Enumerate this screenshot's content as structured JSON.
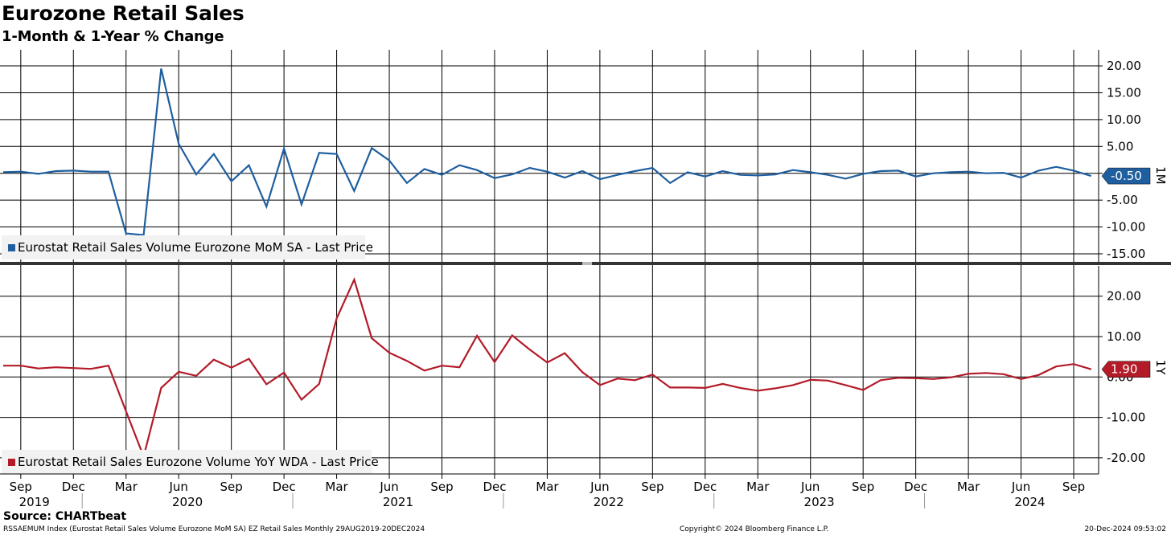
{
  "title": "Eurozone Retail Sales",
  "subtitle": "1-Month & 1-Year % Change",
  "source": "Source: CHARTbeat",
  "footer": {
    "left": "RSSAEMUM Index (Eurostat Retail Sales Volume Eurozone MoM SA) EZ Retail Sales  Monthly 29AUG2019-20DEC2024",
    "middle": "Copyright© 2024 Bloomberg Finance L.P.",
    "right": "20-Dec-2024 09:53:02"
  },
  "colors": {
    "mom": "#1f5fa0",
    "yoy": "#b31b29",
    "grid": "#000000"
  },
  "x_axis": {
    "months": [
      "Sep",
      "Dec",
      "Mar",
      "Jun",
      "Sep",
      "Dec",
      "Mar",
      "Jun",
      "Sep",
      "Dec",
      "Mar",
      "Jun",
      "Sep",
      "Dec",
      "Mar",
      "Jun",
      "Sep",
      "Dec",
      "Mar",
      "Jun",
      "Sep"
    ],
    "years": [
      "2019",
      "2020",
      "2021",
      "2022",
      "2023",
      "2024"
    ],
    "start": "2019-08",
    "end": "2024-10"
  },
  "chart_data": [
    {
      "type": "line",
      "axis_label": "1M",
      "legend": "Eurostat Retail Sales Volume Eurozone MoM SA - Last Price",
      "last_value_label": "-0.50",
      "ylim": [
        -16.5,
        23
      ],
      "yticks": [
        "20.00",
        "15.00",
        "10.00",
        "5.00",
        "0.00",
        "-5.00",
        "-10.00",
        "-15.00"
      ],
      "ytick_values": [
        20,
        15,
        10,
        5,
        0,
        -5,
        -10,
        -15
      ],
      "x": [
        "2019-08",
        "2019-09",
        "2019-10",
        "2019-11",
        "2019-12",
        "2020-01",
        "2020-02",
        "2020-03",
        "2020-04",
        "2020-05",
        "2020-06",
        "2020-07",
        "2020-08",
        "2020-09",
        "2020-10",
        "2020-11",
        "2020-12",
        "2021-01",
        "2021-02",
        "2021-03",
        "2021-04",
        "2021-05",
        "2021-06",
        "2021-07",
        "2021-08",
        "2021-09",
        "2021-10",
        "2021-11",
        "2021-12",
        "2022-01",
        "2022-02",
        "2022-03",
        "2022-04",
        "2022-05",
        "2022-06",
        "2022-07",
        "2022-08",
        "2022-09",
        "2022-10",
        "2022-11",
        "2022-12",
        "2023-01",
        "2023-02",
        "2023-03",
        "2023-04",
        "2023-05",
        "2023-06",
        "2023-07",
        "2023-08",
        "2023-09",
        "2023-10",
        "2023-11",
        "2023-12",
        "2024-01",
        "2024-02",
        "2024-03",
        "2024-04",
        "2024-05",
        "2024-06",
        "2024-07",
        "2024-08",
        "2024-09",
        "2024-10"
      ],
      "values": [
        0.2,
        0.3,
        -0.1,
        0.4,
        0.5,
        0.3,
        0.3,
        -11.2,
        -11.5,
        19.5,
        5.5,
        -0.2,
        3.6,
        -1.5,
        1.5,
        -6.2,
        4.6,
        -5.8,
        3.8,
        3.6,
        -3.3,
        4.7,
        2.4,
        -1.8,
        0.8,
        -0.3,
        1.5,
        0.6,
        -0.9,
        -0.2,
        1.0,
        0.3,
        -0.8,
        0.4,
        -1.1,
        -0.3,
        0.4,
        1.0,
        -1.8,
        0.2,
        -0.6,
        0.4,
        -0.3,
        -0.4,
        -0.2,
        0.6,
        0.2,
        -0.3,
        -1.0,
        -0.1,
        0.4,
        0.5,
        -0.6,
        0.0,
        0.2,
        0.3,
        0.0,
        0.1,
        -0.8,
        0.5,
        1.2,
        0.5,
        -0.5
      ]
    },
    {
      "type": "line",
      "axis_label": "1Y",
      "legend": "Eurostat Retail Sales Eurozone Volume YoY WDA - Last Price",
      "last_value_label": "1.90",
      "ylim": [
        -24,
        27.5
      ],
      "yticks": [
        "20.00",
        "10.00",
        "0.00",
        "-10.00",
        "-20.00"
      ],
      "ytick_values": [
        20,
        10,
        0,
        -10,
        -20
      ],
      "x": [
        "2019-08",
        "2019-09",
        "2019-10",
        "2019-11",
        "2019-12",
        "2020-01",
        "2020-02",
        "2020-03",
        "2020-04",
        "2020-05",
        "2020-06",
        "2020-07",
        "2020-08",
        "2020-09",
        "2020-10",
        "2020-11",
        "2020-12",
        "2021-01",
        "2021-02",
        "2021-03",
        "2021-04",
        "2021-05",
        "2021-06",
        "2021-07",
        "2021-08",
        "2021-09",
        "2021-10",
        "2021-11",
        "2021-12",
        "2022-01",
        "2022-02",
        "2022-03",
        "2022-04",
        "2022-05",
        "2022-06",
        "2022-07",
        "2022-08",
        "2022-09",
        "2022-10",
        "2022-11",
        "2022-12",
        "2023-01",
        "2023-02",
        "2023-03",
        "2023-04",
        "2023-05",
        "2023-06",
        "2023-07",
        "2023-08",
        "2023-09",
        "2023-10",
        "2023-11",
        "2023-12",
        "2024-01",
        "2024-02",
        "2024-03",
        "2024-04",
        "2024-05",
        "2024-06",
        "2024-07",
        "2024-08",
        "2024-09",
        "2024-10"
      ],
      "values": [
        2.8,
        2.8,
        2.1,
        2.4,
        2.2,
        2.0,
        2.8,
        -8.5,
        -19.7,
        -2.7,
        1.3,
        0.3,
        4.3,
        2.3,
        4.5,
        -1.8,
        1.1,
        -5.6,
        -1.7,
        14.5,
        24.1,
        9.6,
        6.0,
        4.0,
        1.6,
        2.8,
        2.4,
        10.2,
        3.7,
        10.3,
        6.8,
        3.6,
        5.9,
        1.2,
        -2.0,
        -0.4,
        -0.8,
        0.6,
        -2.6,
        -2.6,
        -2.7,
        -1.7,
        -2.7,
        -3.4,
        -2.8,
        -2.0,
        -0.7,
        -0.9,
        -2.0,
        -3.2,
        -0.8,
        -0.2,
        -0.3,
        -0.5,
        -0.1,
        0.8,
        1.0,
        0.7,
        -0.5,
        0.5,
        2.6,
        3.2,
        1.9
      ]
    }
  ]
}
